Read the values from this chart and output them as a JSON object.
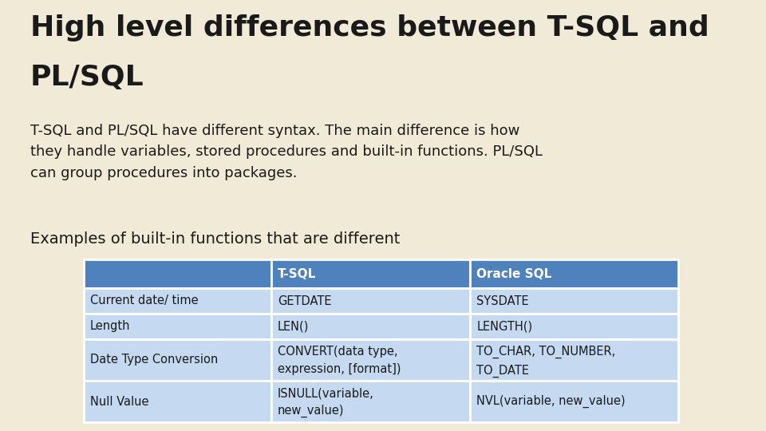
{
  "background_color": "#f0ead6",
  "title_line1": "High level differences between T-SQL and",
  "title_line2": "PL/SQL",
  "title_fontsize": 26,
  "title_font": "DejaVu Sans",
  "body_text": "T-SQL and PL/SQL have different syntax. The main difference is how\nthey handle variables, stored procedures and built-in functions. PL/SQL\ncan group procedures into packages.",
  "body_fontsize": 13,
  "subtitle": "Examples of built-in functions that are different",
  "subtitle_fontsize": 14,
  "table_header_bg": "#4f81bd",
  "table_header_text_color": "#ffffff",
  "table_row_bg": "#c5d9f1",
  "table_border_color": "#ffffff",
  "table_text_color": "#1a1a1a",
  "table_header_fontsize": 11,
  "table_cell_fontsize": 10.5,
  "table_col0_header": "",
  "table_col1_header": "T-SQL",
  "table_col2_header": "Oracle SQL",
  "table_rows": [
    [
      "Current date/ time",
      "GETDATE",
      "SYSDATE"
    ],
    [
      "Length",
      "LEN()",
      "LENGTH()"
    ],
    [
      "Date Type Conversion",
      "CONVERT(data type,\nexpression, [format])",
      "TO_CHAR, TO_NUMBER,\nTO_DATE"
    ],
    [
      "Null Value",
      "ISNULL(variable,\nnew_value)",
      "NVL(variable, new_value)"
    ]
  ],
  "fig_width": 9.6,
  "fig_height": 5.4,
  "dpi": 100
}
